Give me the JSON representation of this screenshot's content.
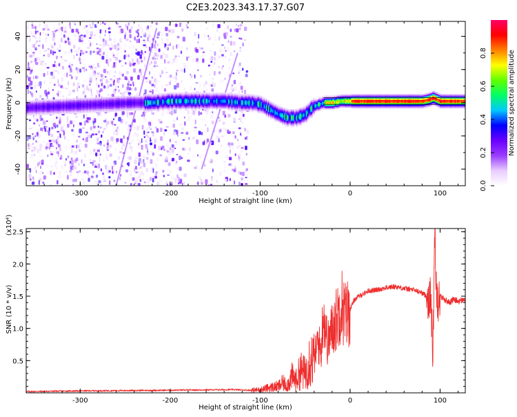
{
  "chart_data": [
    {
      "type": "heatmap",
      "title": "C2E3.2023.343.17.37.G07",
      "xlabel": "Height of straight line (km)",
      "ylabel": "Frequency (Hz)",
      "xlim": [
        -360,
        128
      ],
      "ylim": [
        -50,
        49
      ],
      "xticks": [
        -300,
        -200,
        -100,
        0,
        100
      ],
      "xtick_labels": [
        "-300",
        "-200",
        "-100",
        "0",
        "100"
      ],
      "yticks": [
        -40,
        -20,
        0,
        20,
        40
      ],
      "ytick_labels": [
        "-40",
        "-20",
        "0",
        "20",
        "40"
      ],
      "ridge": {
        "x": [
          -360,
          -320,
          -280,
          -240,
          -220,
          -200,
          -180,
          -160,
          -140,
          -120,
          -110,
          -100,
          -90,
          -80,
          -70,
          -60,
          -50,
          -45,
          -40,
          -30,
          -20,
          -10,
          0,
          20,
          40,
          60,
          80,
          88,
          92,
          100,
          128
        ],
        "y": [
          -3,
          -2,
          -1,
          0,
          0,
          1,
          1,
          1,
          1,
          0,
          0,
          -1,
          -4,
          -7,
          -9,
          -9,
          -7,
          -4,
          -2,
          0,
          0,
          1,
          1,
          1,
          1,
          1,
          1,
          2,
          3,
          1,
          1
        ]
      },
      "colorbar": {
        "label": "Normalized spectral amplitude",
        "range": [
          0.0,
          1.0
        ],
        "ticks": [
          0.0,
          0.2,
          0.4,
          0.6,
          0.8
        ],
        "tick_labels": [
          "0.0",
          "0.2",
          "0.4",
          "0.6",
          "0.8"
        ],
        "colors": [
          "#ffffff",
          "#e8ccff",
          "#9a3cff",
          "#6a00ff",
          "#0000ff",
          "#00c8ff",
          "#00ff66",
          "#60ff00",
          "#ffff00",
          "#ff8000",
          "#ff0000",
          "#ff0066"
        ]
      }
    },
    {
      "type": "line",
      "xlabel": "Height of straight line (km)",
      "ylabel": "SNR (10 * v/v)",
      "y_multiplier_label": "(x10⁴)",
      "xlim": [
        -360,
        128
      ],
      "ylim": [
        0.0,
        2.55
      ],
      "xticks": [
        -300,
        -200,
        -100,
        0,
        100
      ],
      "xtick_labels": [
        "-300",
        "-200",
        "-100",
        "0",
        "100"
      ],
      "yticks": [
        0.5,
        1.0,
        1.5,
        2.0,
        2.5
      ],
      "ytick_labels": [
        "0.5",
        "1.0",
        "1.5",
        "2.0",
        "2.5"
      ],
      "color": "#ee2d2d",
      "series": [
        {
          "x": [
            -360,
            -300,
            -200,
            -130,
            -110,
            -100,
            -90,
            -80,
            -75,
            -70,
            -65,
            -60,
            -55,
            -50,
            -45,
            -40,
            -36,
            -32,
            -30,
            -25,
            -20,
            -15,
            -12,
            -10,
            -5,
            0,
            5,
            10,
            20,
            30,
            40,
            50,
            60,
            70,
            80,
            85,
            90,
            92,
            94,
            96,
            98,
            100,
            105,
            110,
            115,
            120,
            128
          ],
          "y": [
            0.02,
            0.03,
            0.04,
            0.05,
            0.04,
            0.05,
            0.08,
            0.1,
            0.15,
            0.12,
            0.25,
            0.2,
            0.35,
            0.3,
            0.55,
            0.5,
            0.8,
            0.65,
            1.3,
            0.75,
            1.0,
            1.15,
            1.3,
            1.4,
            1.2,
            1.3,
            1.45,
            1.5,
            1.58,
            1.6,
            1.63,
            1.65,
            1.62,
            1.6,
            1.55,
            1.5,
            1.45,
            0.5,
            2.55,
            1.6,
            1.4,
            1.5,
            1.45,
            1.4,
            1.45,
            1.42,
            1.45
          ]
        }
      ]
    }
  ]
}
